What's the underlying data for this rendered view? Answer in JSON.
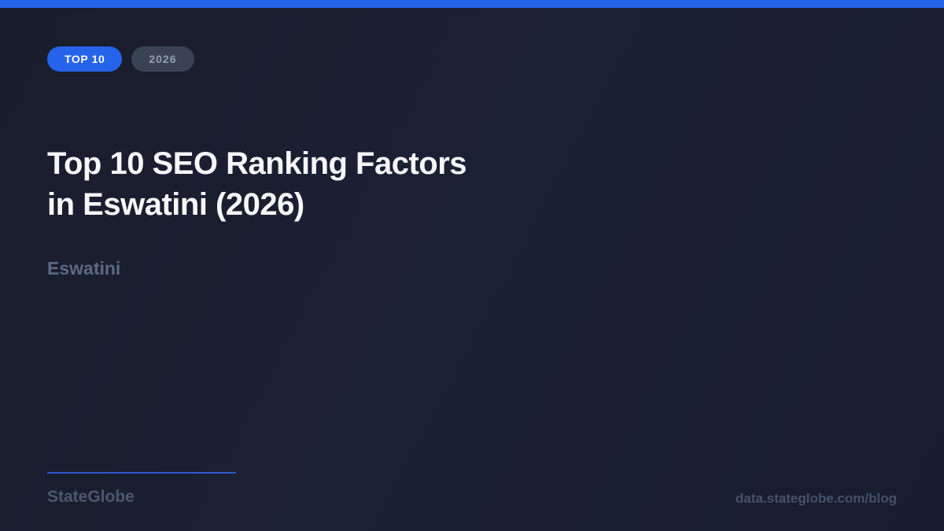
{
  "theme": {
    "accent_blue": "#2563eb",
    "background_dark": "#191c2b",
    "title_color": "#f5f7fa",
    "subtitle_color": "#5c6a84",
    "footer_brand_color": "#4d576e",
    "footer_url_color": "#46526b",
    "badge_secondary_bg": "#3a4353",
    "badge_secondary_text": "#94a0b1",
    "divider_color": "#2e57c9"
  },
  "badges": {
    "primary_label": "TOP 10",
    "secondary_label": "2026"
  },
  "title": {
    "line1": "Top 10 SEO Ranking Factors",
    "line2": "in Eswatini (2026)"
  },
  "subtitle": "Eswatini",
  "footer": {
    "brand": "StateGlobe",
    "url": "data.stateglobe.com/blog"
  }
}
